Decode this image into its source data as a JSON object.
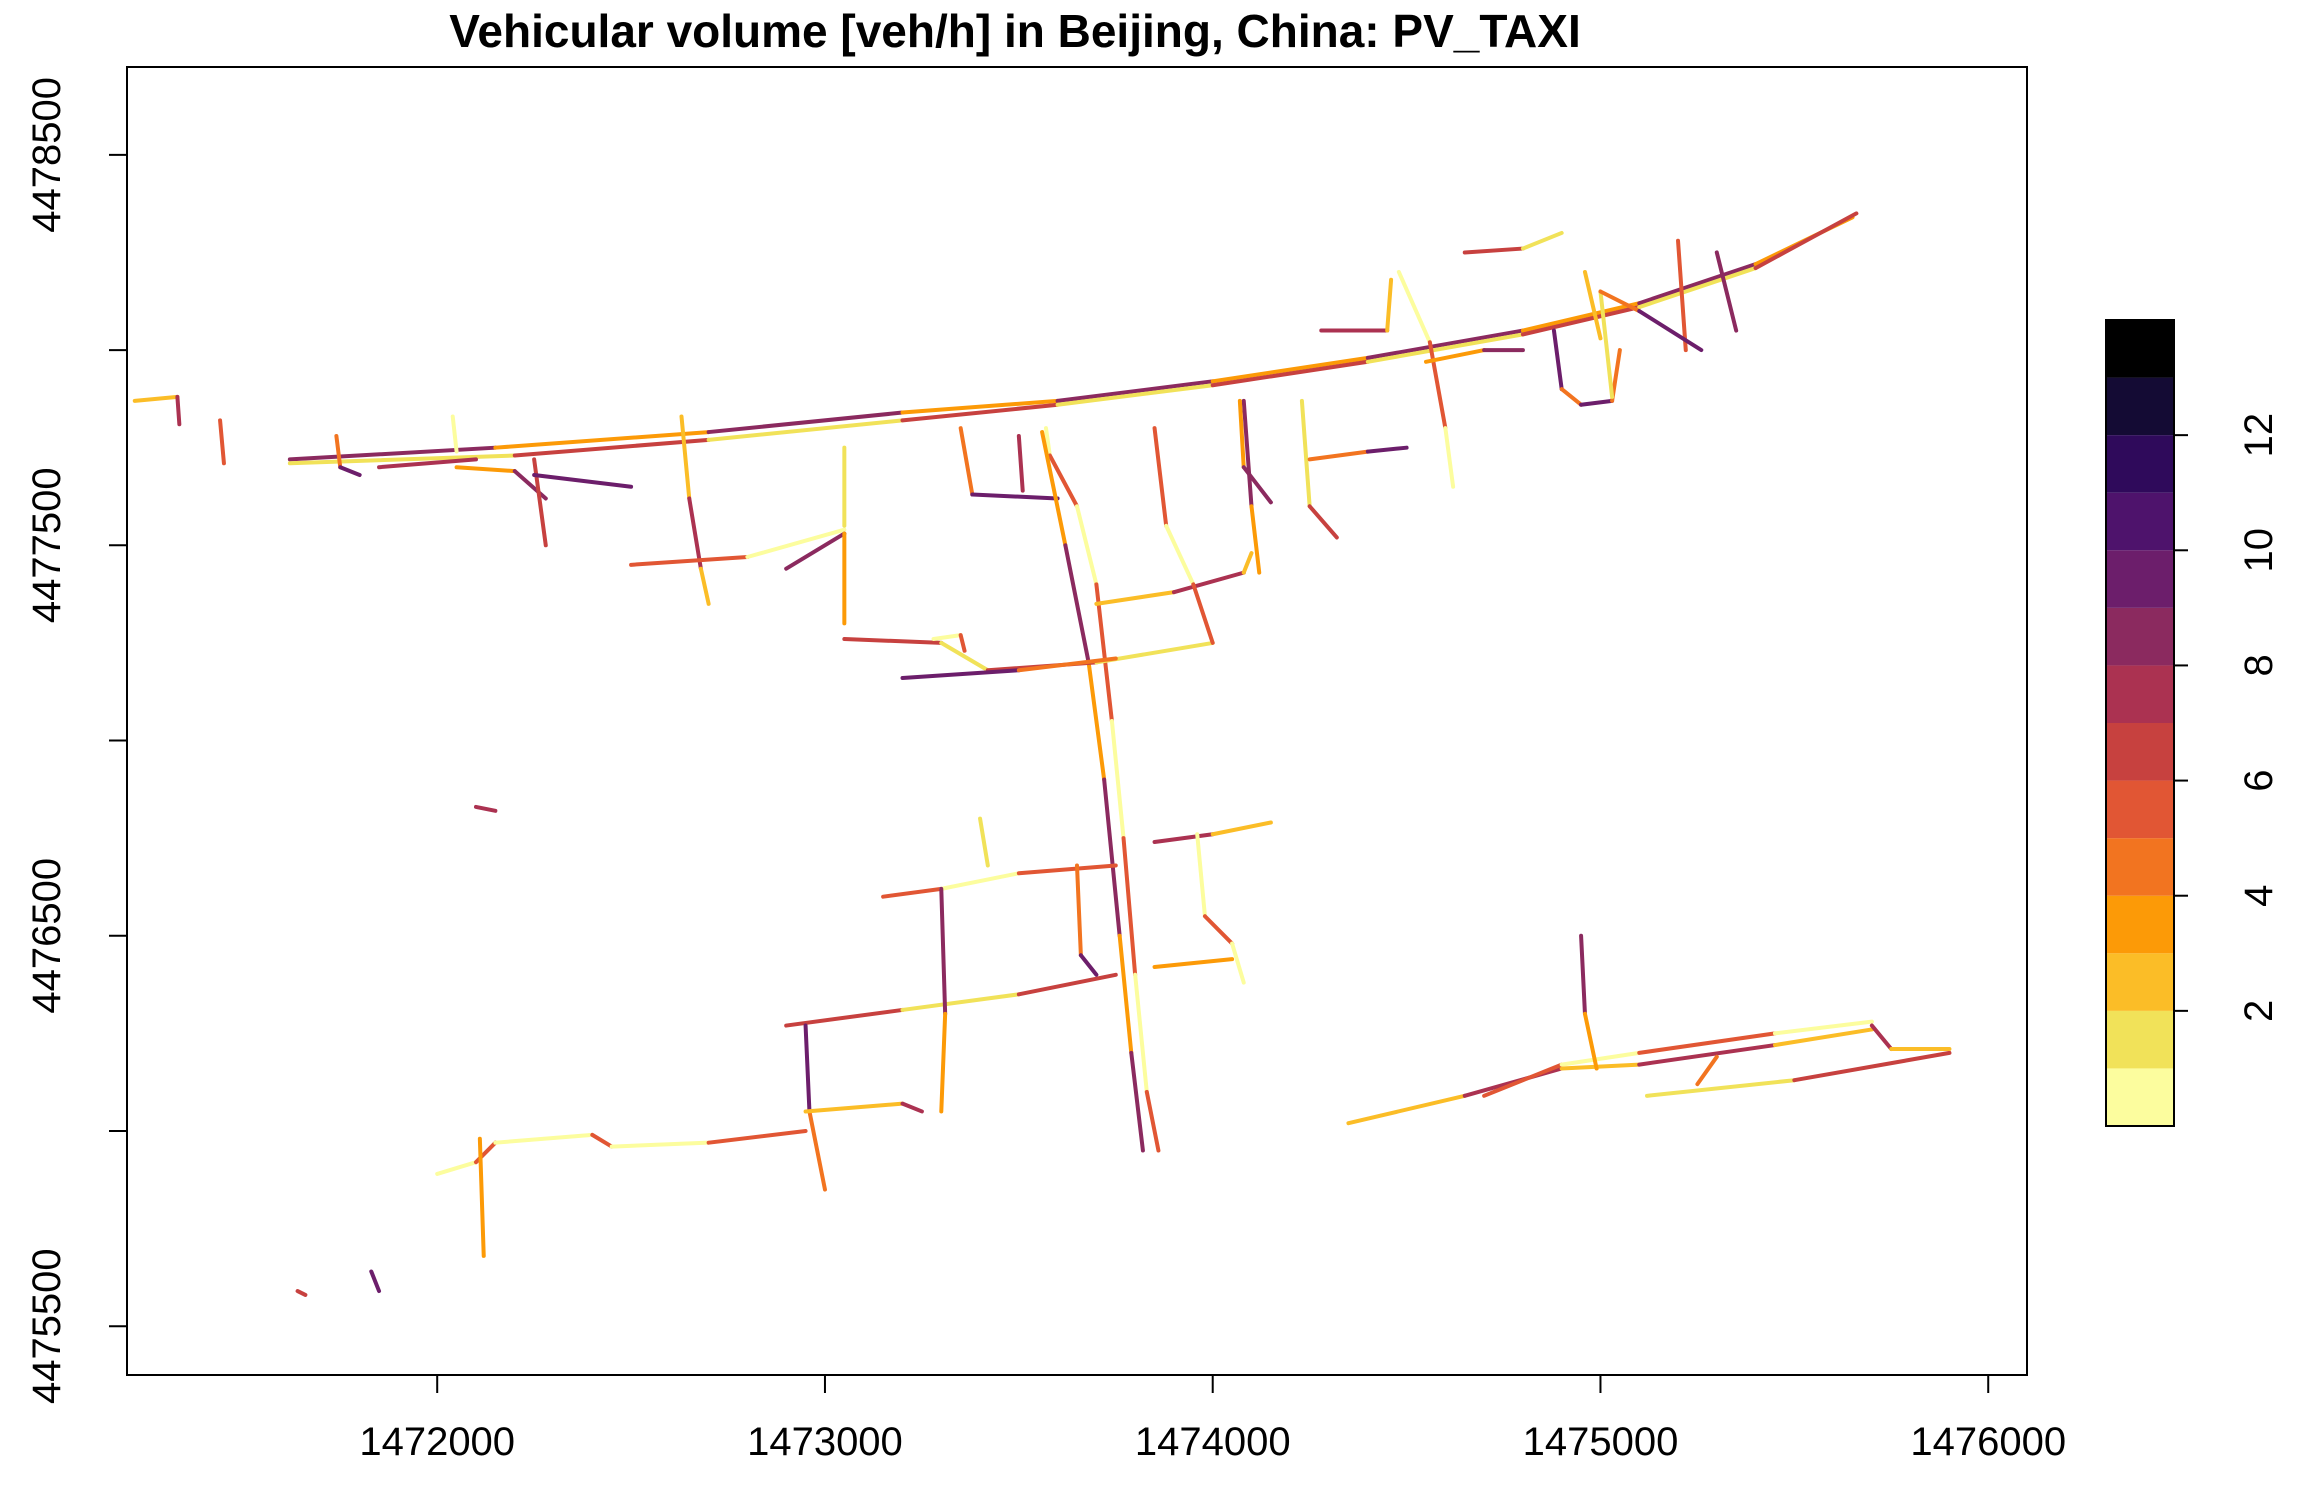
{
  "title": "Vehicular volume [veh/h] in Beijing, China: PV_TAXI",
  "map": {
    "x_range": [
      1471200,
      1476100
    ],
    "y_range": [
      4475375,
      4478725
    ],
    "x_ticks": [
      1472000,
      1473000,
      1474000,
      1475000,
      1476000
    ],
    "x_tick_labels": [
      "1472000",
      "1473000",
      "1474000",
      "1475000",
      "1476000"
    ],
    "y_ticks": [
      4475500,
      4476000,
      4476500,
      4477000,
      4477500,
      4478000,
      4478500
    ],
    "y_tick_labels": [
      "4475500",
      "",
      "4476500",
      "",
      "4477500",
      "",
      "4478500"
    ],
    "roads": [
      [
        [
          1471220,
          4477870
        ],
        [
          1471330,
          4477880
        ],
        [
          1471335,
          4477810
        ]
      ],
      [
        [
          1471440,
          4477820
        ],
        [
          1471450,
          4477710
        ]
      ],
      [
        [
          1471620,
          4477720
        ],
        [
          1472150,
          4477750
        ],
        [
          1472700,
          4477790
        ],
        [
          1473200,
          4477840
        ],
        [
          1473600,
          4477870
        ],
        [
          1474000,
          4477920
        ],
        [
          1474400,
          4477980
        ],
        [
          1474800,
          4478050
        ],
        [
          1475100,
          4478120
        ],
        [
          1475400,
          4478220
        ],
        [
          1475650,
          4478340
        ]
      ],
      [
        [
          1471620,
          4477710
        ],
        [
          1472200,
          4477730
        ],
        [
          1472700,
          4477770
        ],
        [
          1473200,
          4477820
        ],
        [
          1473600,
          4477860
        ],
        [
          1474000,
          4477910
        ],
        [
          1474400,
          4477970
        ],
        [
          1474800,
          4478040
        ],
        [
          1475100,
          4478110
        ],
        [
          1475400,
          4478210
        ],
        [
          1475660,
          4478350
        ]
      ],
      [
        [
          1471740,
          4477780
        ],
        [
          1471750,
          4477700
        ],
        [
          1471800,
          4477680
        ]
      ],
      [
        [
          1471850,
          4477700
        ],
        [
          1472100,
          4477720
        ]
      ],
      [
        [
          1472040,
          4477830
        ],
        [
          1472050,
          4477740
        ]
      ],
      [
        [
          1472050,
          4477700
        ],
        [
          1472200,
          4477690
        ],
        [
          1472280,
          4477620
        ]
      ],
      [
        [
          1472250,
          4477720
        ],
        [
          1472280,
          4477500
        ]
      ],
      [
        [
          1472250,
          4477680
        ],
        [
          1472500,
          4477650
        ]
      ],
      [
        [
          1472630,
          4477830
        ],
        [
          1472650,
          4477620
        ],
        [
          1472680,
          4477440
        ],
        [
          1472700,
          4477350
        ]
      ],
      [
        [
          1472500,
          4477450
        ],
        [
          1472800,
          4477470
        ],
        [
          1473050,
          4477540
        ]
      ],
      [
        [
          1472900,
          4477440
        ],
        [
          1473050,
          4477530
        ],
        [
          1473050,
          4477300
        ]
      ],
      [
        [
          1473050,
          4477750
        ],
        [
          1473050,
          4477550
        ]
      ],
      [
        [
          1473350,
          4477800
        ],
        [
          1473380,
          4477630
        ],
        [
          1473600,
          4477620
        ]
      ],
      [
        [
          1473500,
          4477780
        ],
        [
          1473510,
          4477640
        ]
      ],
      [
        [
          1473570,
          4477800
        ],
        [
          1473580,
          4477730
        ],
        [
          1473650,
          4477600
        ],
        [
          1473700,
          4477400
        ],
        [
          1473740,
          4477050
        ],
        [
          1473770,
          4476750
        ],
        [
          1473800,
          4476400
        ],
        [
          1473830,
          4476100
        ],
        [
          1473860,
          4475950
        ]
      ],
      [
        [
          1473560,
          4477790
        ],
        [
          1473620,
          4477500
        ],
        [
          1473680,
          4477200
        ],
        [
          1473720,
          4476900
        ],
        [
          1473760,
          4476500
        ],
        [
          1473790,
          4476200
        ],
        [
          1473820,
          4475950
        ]
      ],
      [
        [
          1473050,
          4477260
        ],
        [
          1473300,
          4477250
        ],
        [
          1473420,
          4477180
        ],
        [
          1473700,
          4477200
        ],
        [
          1474000,
          4477250
        ]
      ],
      [
        [
          1473200,
          4477160
        ],
        [
          1473500,
          4477180
        ],
        [
          1473750,
          4477210
        ]
      ],
      [
        [
          1473700,
          4477350
        ],
        [
          1473900,
          4477380
        ],
        [
          1474080,
          4477430
        ],
        [
          1474100,
          4477480
        ]
      ],
      [
        [
          1473850,
          4477800
        ],
        [
          1473880,
          4477550
        ],
        [
          1473950,
          4477400
        ],
        [
          1474000,
          4477250
        ]
      ],
      [
        [
          1474080,
          4477870
        ],
        [
          1474100,
          4477600
        ],
        [
          1474120,
          4477430
        ]
      ],
      [
        [
          1474230,
          4477870
        ],
        [
          1474250,
          4477600
        ],
        [
          1474320,
          4477520
        ]
      ],
      [
        [
          1474250,
          4477720
        ],
        [
          1474400,
          4477740
        ],
        [
          1474500,
          4477750
        ]
      ],
      [
        [
          1474280,
          4478050
        ],
        [
          1474450,
          4478050
        ],
        [
          1474460,
          4478180
        ]
      ],
      [
        [
          1474480,
          4478200
        ],
        [
          1474560,
          4478020
        ],
        [
          1474600,
          4477800
        ],
        [
          1474620,
          4477650
        ]
      ],
      [
        [
          1474550,
          4477970
        ],
        [
          1474700,
          4478000
        ],
        [
          1474800,
          4478000
        ]
      ],
      [
        [
          1474650,
          4478250
        ],
        [
          1474800,
          4478260
        ],
        [
          1474900,
          4478300
        ]
      ],
      [
        [
          1474880,
          4478050
        ],
        [
          1474900,
          4477900
        ],
        [
          1474950,
          4477860
        ],
        [
          1475030,
          4477870
        ],
        [
          1475050,
          4478000
        ]
      ],
      [
        [
          1474960,
          4478200
        ],
        [
          1475000,
          4478030
        ]
      ],
      [
        [
          1475200,
          4478280
        ],
        [
          1475220,
          4478000
        ]
      ],
      [
        [
          1475300,
          4478250
        ],
        [
          1475350,
          4478050
        ]
      ],
      [
        [
          1475000,
          4478150
        ],
        [
          1475030,
          4477880
        ]
      ],
      [
        [
          1475000,
          4478150
        ],
        [
          1475100,
          4478100
        ],
        [
          1475260,
          4478000
        ]
      ],
      [
        [
          1472100,
          4476830
        ],
        [
          1472150,
          4476820
        ]
      ],
      [
        [
          1472000,
          4475890
        ],
        [
          1472100,
          4475920
        ],
        [
          1472150,
          4475970
        ],
        [
          1472400,
          4475990
        ],
        [
          1472450,
          4475960
        ],
        [
          1472700,
          4475970
        ],
        [
          1472950,
          4476000
        ]
      ],
      [
        [
          1472110,
          4475980
        ],
        [
          1472120,
          4475680
        ]
      ],
      [
        [
          1472900,
          4476270
        ],
        [
          1473200,
          4476310
        ],
        [
          1473500,
          4476350
        ],
        [
          1473750,
          4476400
        ]
      ],
      [
        [
          1472950,
          4476270
        ],
        [
          1472960,
          4476050
        ],
        [
          1473000,
          4475850
        ]
      ],
      [
        [
          1472950,
          4476050
        ],
        [
          1473200,
          4476070
        ],
        [
          1473250,
          4476050
        ]
      ],
      [
        [
          1473150,
          4476600
        ],
        [
          1473300,
          4476620
        ],
        [
          1473500,
          4476660
        ],
        [
          1473750,
          4476680
        ]
      ],
      [
        [
          1473300,
          4476620
        ],
        [
          1473310,
          4476300
        ],
        [
          1473300,
          4476050
        ]
      ],
      [
        [
          1473400,
          4476800
        ],
        [
          1473420,
          4476680
        ]
      ],
      [
        [
          1473650,
          4476680
        ],
        [
          1473660,
          4476450
        ],
        [
          1473700,
          4476400
        ]
      ],
      [
        [
          1473850,
          4476740
        ],
        [
          1474000,
          4476760
        ],
        [
          1474150,
          4476790
        ]
      ],
      [
        [
          1473960,
          4476760
        ],
        [
          1473980,
          4476550
        ],
        [
          1474050,
          4476480
        ],
        [
          1474080,
          4476380
        ]
      ],
      [
        [
          1473850,
          4476420
        ],
        [
          1474050,
          4476440
        ]
      ],
      [
        [
          1471640,
          4475590
        ],
        [
          1471660,
          4475580
        ]
      ],
      [
        [
          1471830,
          4475640
        ],
        [
          1471850,
          4475590
        ]
      ],
      [
        [
          1474350,
          4476020
        ],
        [
          1474650,
          4476090
        ],
        [
          1474900,
          4476160
        ],
        [
          1475100,
          4476170
        ],
        [
          1475450,
          4476220
        ],
        [
          1475700,
          4476260
        ]
      ],
      [
        [
          1474700,
          4476090
        ],
        [
          1474900,
          4476170
        ],
        [
          1475100,
          4476200
        ],
        [
          1475450,
          4476250
        ],
        [
          1475700,
          4476280
        ]
      ],
      [
        [
          1474950,
          4476500
        ],
        [
          1474960,
          4476300
        ],
        [
          1474990,
          4476160
        ]
      ],
      [
        [
          1475120,
          4476090
        ],
        [
          1475500,
          4476130
        ],
        [
          1475900,
          4476200
        ]
      ],
      [
        [
          1475250,
          4476120
        ],
        [
          1475300,
          4476190
        ]
      ],
      [
        [
          1475700,
          4476270
        ],
        [
          1475750,
          4476210
        ],
        [
          1475900,
          4476210
        ]
      ],
      [
        [
          1473280,
          4477260
        ],
        [
          1473350,
          4477270
        ],
        [
          1473360,
          4477230
        ]
      ],
      [
        [
          1474070,
          4477870
        ],
        [
          1474080,
          4477700
        ],
        [
          1474150,
          4477610
        ]
      ]
    ]
  },
  "legend": {
    "colors": [
      "#fcfd9e",
      "#f1e259",
      "#fbbd27",
      "#fc9a07",
      "#f27420",
      "#e15634",
      "#c7413f",
      "#ab3251",
      "#8b2a5f",
      "#6c1e6b",
      "#4e136c",
      "#2f0a5b",
      "#140b34",
      "#000000"
    ],
    "levels": [
      0,
      1,
      2,
      3,
      4,
      5,
      6,
      7,
      8,
      9,
      10,
      11,
      12,
      13,
      14
    ],
    "tick_labels": [
      "2",
      "4",
      "6",
      "8",
      "10",
      "12"
    ],
    "tick_values": [
      2,
      4,
      6,
      8,
      10,
      12
    ]
  }
}
